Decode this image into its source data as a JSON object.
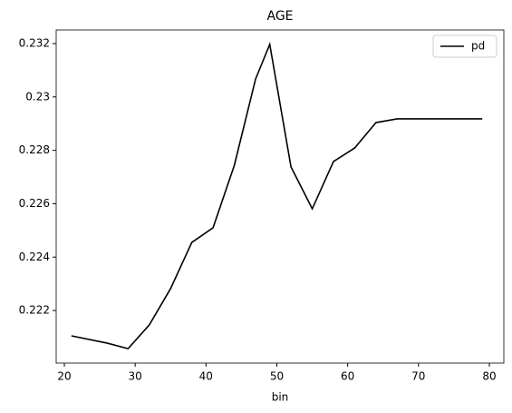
{
  "chart_data": {
    "type": "line",
    "title": "AGE",
    "x_label": "bin",
    "x": [
      21,
      26,
      29,
      32,
      35,
      38,
      41,
      44,
      47,
      49,
      52,
      55,
      58,
      61,
      64,
      67,
      72,
      76,
      79
    ],
    "series": [
      {
        "name": "pd",
        "color": "#000000",
        "values": [
          0.22105,
          0.22078,
          0.22057,
          0.22146,
          0.22282,
          0.22455,
          0.2251,
          0.22744,
          0.23067,
          0.23197,
          0.22738,
          0.22581,
          0.22758,
          0.22809,
          0.22904,
          0.22918,
          0.22918,
          0.22918,
          0.22918
        ]
      }
    ],
    "xlim": [
      18.85,
      82.05
    ],
    "ylim": [
      0.22003,
      0.23251
    ],
    "xticks": [
      20,
      30,
      40,
      50,
      60,
      70,
      80
    ],
    "yticks": [
      0.222,
      0.224,
      0.226,
      0.228,
      0.23,
      0.232
    ],
    "legend": "upper right",
    "grid": false
  }
}
